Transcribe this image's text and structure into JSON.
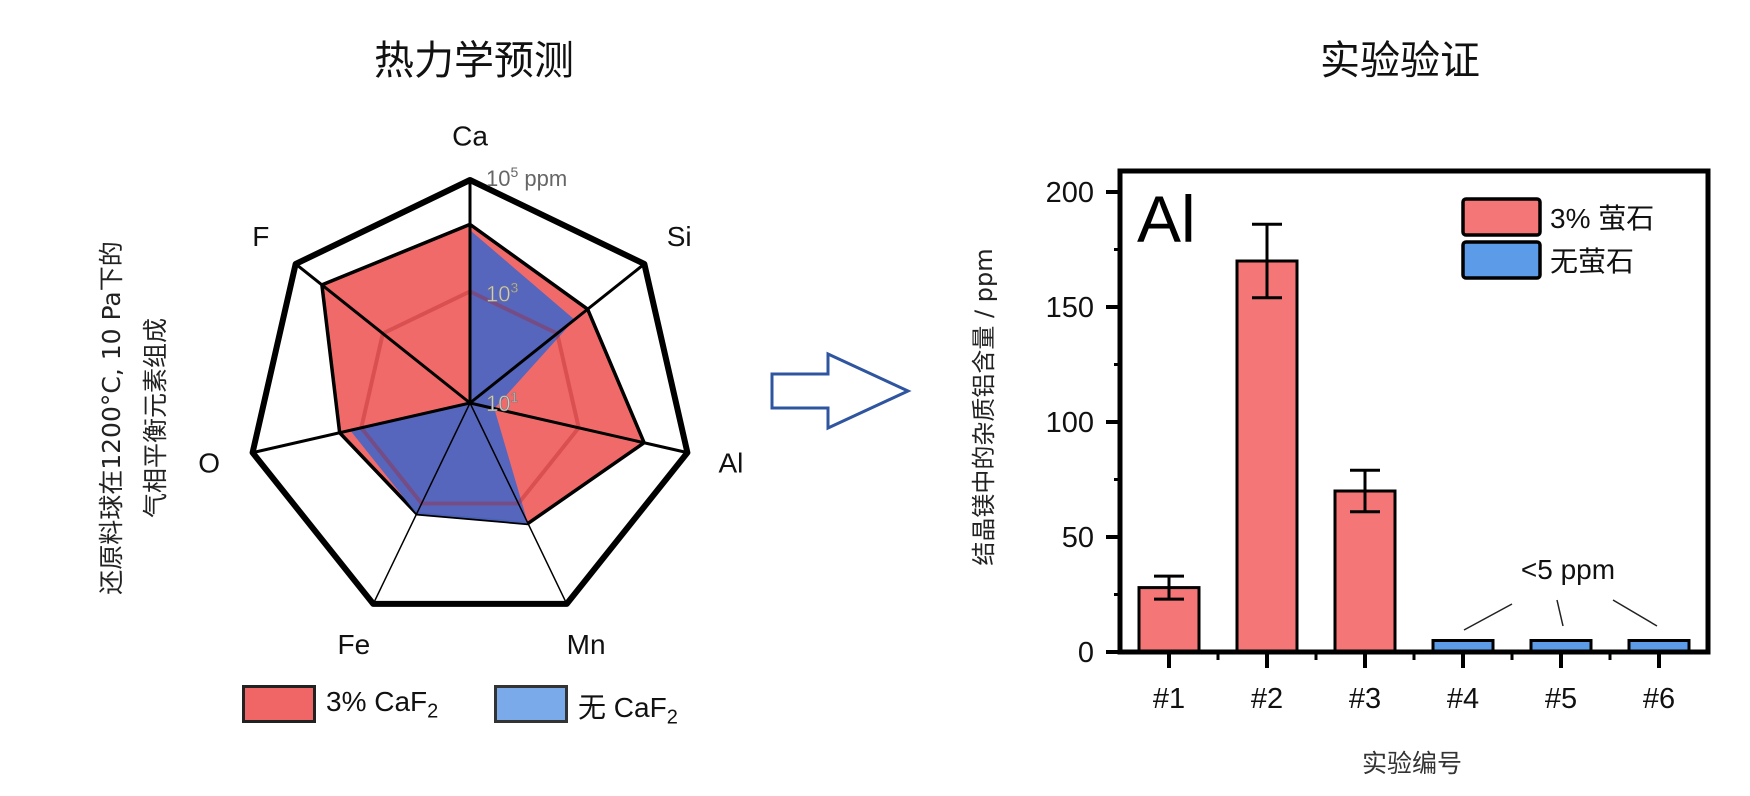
{
  "left_title": "热力学预测",
  "right_title": "实验验证",
  "colors": {
    "red_fill": "#f06262",
    "blue_fill": "#4e66c2",
    "bar_red": "#f47676",
    "bar_blue": "#5b9be8",
    "legend_blue": "#7aaaea",
    "arrow": "#2f55a0"
  },
  "chart_data": [
    {
      "type": "radar",
      "title": "热力学预测",
      "ylabel_lines": [
        "还原料球在1200°C, 10 Pa下的",
        "气相平衡元素组成"
      ],
      "axes": [
        "Ca",
        "Si",
        "Al",
        "Mn",
        "Fe",
        "O",
        "F"
      ],
      "scale": "log",
      "range_ppm": [
        10,
        100000
      ],
      "ring_labels": [
        {
          "base": "10",
          "exp": "1",
          "unit": ""
        },
        {
          "base": "10",
          "exp": "3",
          "unit": ""
        },
        {
          "base": "10",
          "exp": "5",
          "unit": " ppm"
        }
      ],
      "series": [
        {
          "name": "3% CaF",
          "subscript": "2",
          "color": "#f06262",
          "values": [
            16000,
            5000,
            16000,
            2500,
            1600,
            2500,
            25000
          ]
        },
        {
          "name": "无 CaF",
          "subscript": "2",
          "color": "#4e66c2",
          "values": [
            12600,
            2500,
            28,
            2500,
            1600,
            1600,
            10
          ]
        }
      ],
      "legend": "bottom"
    },
    {
      "type": "bar",
      "title": "实验验证",
      "panel_label": "Al",
      "categories": [
        "#1",
        "#2",
        "#3",
        "#4",
        "#5",
        "#6"
      ],
      "xlabel": "实验编号",
      "ylabel": "结晶镁中的杂质铝含量 / ppm",
      "ylim": [
        0,
        210
      ],
      "yticks": [
        0,
        50,
        100,
        150,
        200
      ],
      "series": [
        {
          "name": "3% 萤石",
          "color": "#f47676",
          "values": [
            28,
            170,
            70,
            null,
            null,
            null
          ],
          "errors": [
            5,
            16,
            9,
            null,
            null,
            null
          ]
        },
        {
          "name": "无萤石",
          "color": "#5b9be8",
          "values": [
            null,
            null,
            null,
            5,
            5,
            5
          ],
          "errors": [
            null,
            null,
            null,
            null,
            null,
            null
          ]
        }
      ],
      "annotation": "<5 ppm",
      "legend": "top-right",
      "grid": false
    }
  ]
}
